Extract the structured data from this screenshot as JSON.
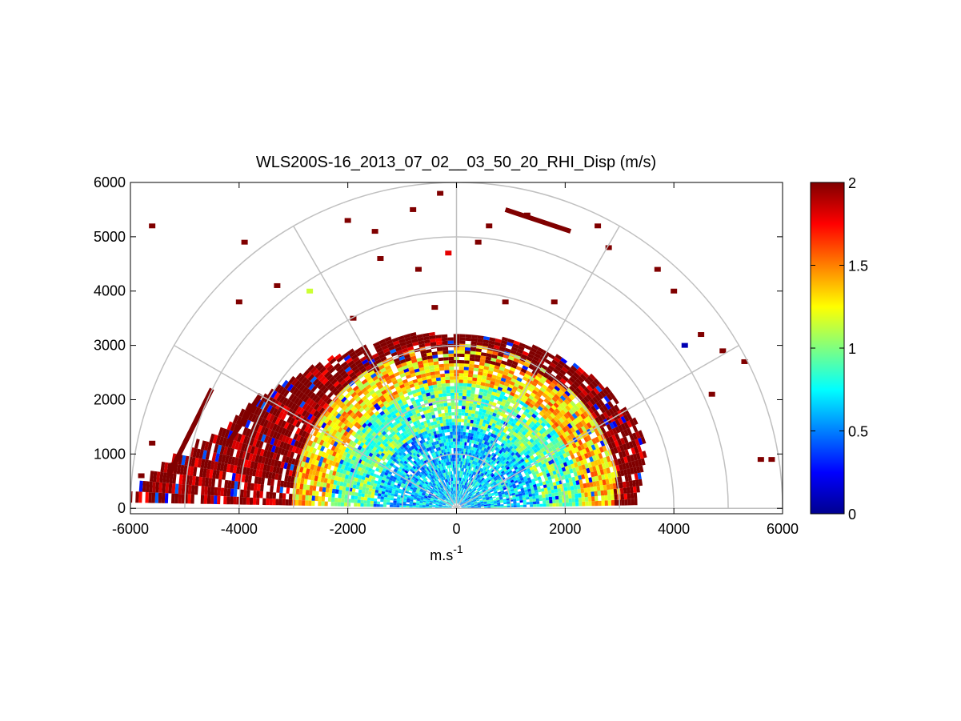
{
  "chart_data": {
    "type": "heatmap",
    "projection": "polar-rhi-semicircle",
    "title": "WLS200S-16_2013_07_02__03_50_20_RHI_Disp (m/s)",
    "xlabel": "m.s",
    "xlabel_superscript": "-1",
    "ylabel": "",
    "xlim": [
      -6000,
      6000
    ],
    "ylim": [
      -100,
      6000
    ],
    "xticks": [
      -6000,
      -4000,
      -2000,
      0,
      2000,
      4000,
      6000
    ],
    "yticks": [
      0,
      1000,
      2000,
      3000,
      4000,
      5000,
      6000
    ],
    "range_rings": [
      1000,
      2000,
      3000,
      4000,
      5000,
      6000
    ],
    "spokes_deg": [
      0,
      30,
      60,
      90,
      120,
      150,
      180
    ],
    "colorbar": {
      "colormap": "jet",
      "clim": [
        0,
        2
      ],
      "ticks": [
        0,
        0.5,
        1,
        1.5,
        2
      ]
    },
    "dense_field": {
      "description_free": true,
      "range_max_by_angle": [
        [
          3,
          3300
        ],
        [
          20,
          3700
        ],
        [
          40,
          3500
        ],
        [
          60,
          3300
        ],
        [
          75,
          3200
        ],
        [
          90,
          3150
        ],
        [
          105,
          3300
        ],
        [
          120,
          3400
        ],
        [
          140,
          3800
        ],
        [
          160,
          4500
        ],
        [
          177,
          6000
        ]
      ],
      "value_bands": [
        [
          0,
          1500,
          0.65
        ],
        [
          1500,
          2300,
          0.95
        ],
        [
          2300,
          3000,
          1.35
        ],
        [
          3000,
          6000,
          2.0
        ]
      ]
    },
    "isolated_returns": [
      {
        "x": -5600,
        "y": 5200,
        "v": 2.0
      },
      {
        "x": -3900,
        "y": 4900,
        "v": 2.0
      },
      {
        "x": -3300,
        "y": 4100,
        "v": 2.0
      },
      {
        "x": -2700,
        "y": 4000,
        "v": 1.15
      },
      {
        "x": -4000,
        "y": 3800,
        "v": 2.0
      },
      {
        "x": -2000,
        "y": 5300,
        "v": 2.0
      },
      {
        "x": -1500,
        "y": 5100,
        "v": 2.0
      },
      {
        "x": -800,
        "y": 5500,
        "v": 2.0
      },
      {
        "x": -300,
        "y": 5800,
        "v": 2.0
      },
      {
        "x": -1400,
        "y": 4600,
        "v": 2.0
      },
      {
        "x": -700,
        "y": 4400,
        "v": 2.0
      },
      {
        "x": -150,
        "y": 4700,
        "v": 1.8
      },
      {
        "x": 600,
        "y": 5200,
        "v": 2.0
      },
      {
        "x": 400,
        "y": 4900,
        "v": 2.0
      },
      {
        "x": 1300,
        "y": 5400,
        "v": 2.0
      },
      {
        "x": 2600,
        "y": 5200,
        "v": 2.0
      },
      {
        "x": 2800,
        "y": 4800,
        "v": 2.0
      },
      {
        "x": 3700,
        "y": 4400,
        "v": 2.0
      },
      {
        "x": 4000,
        "y": 4000,
        "v": 2.0
      },
      {
        "x": 4500,
        "y": 3200,
        "v": 2.0
      },
      {
        "x": 4900,
        "y": 2900,
        "v": 2.0
      },
      {
        "x": 5300,
        "y": 2700,
        "v": 2.0
      },
      {
        "x": 1800,
        "y": 3800,
        "v": 2.0
      },
      {
        "x": 900,
        "y": 3800,
        "v": 2.0
      },
      {
        "x": -400,
        "y": 3700,
        "v": 2.0
      },
      {
        "x": -1900,
        "y": 3500,
        "v": 2.0
      },
      {
        "x": -5600,
        "y": 1200,
        "v": 2.0
      },
      {
        "x": -5800,
        "y": 600,
        "v": 2.0
      },
      {
        "x": -5200,
        "y": 800,
        "v": 2.0
      },
      {
        "x": 5600,
        "y": 900,
        "v": 2.0
      },
      {
        "x": 5800,
        "y": 900,
        "v": 2.0
      },
      {
        "x": 4700,
        "y": 2100,
        "v": 2.0
      },
      {
        "x": 4200,
        "y": 3000,
        "v": 0.1
      }
    ],
    "streaks": [
      {
        "from": [
          900,
          5500
        ],
        "to": [
          2100,
          5100
        ],
        "v": 2.0
      },
      {
        "from": [
          -5000,
          1200
        ],
        "to": [
          -4500,
          2200
        ],
        "v": 2.0
      },
      {
        "from": [
          -5300,
          600
        ],
        "to": [
          -4900,
          1400
        ],
        "v": 2.0
      },
      {
        "from": [
          -4200,
          1200
        ],
        "to": [
          -3600,
          2100
        ],
        "v": 2.0
      }
    ]
  }
}
